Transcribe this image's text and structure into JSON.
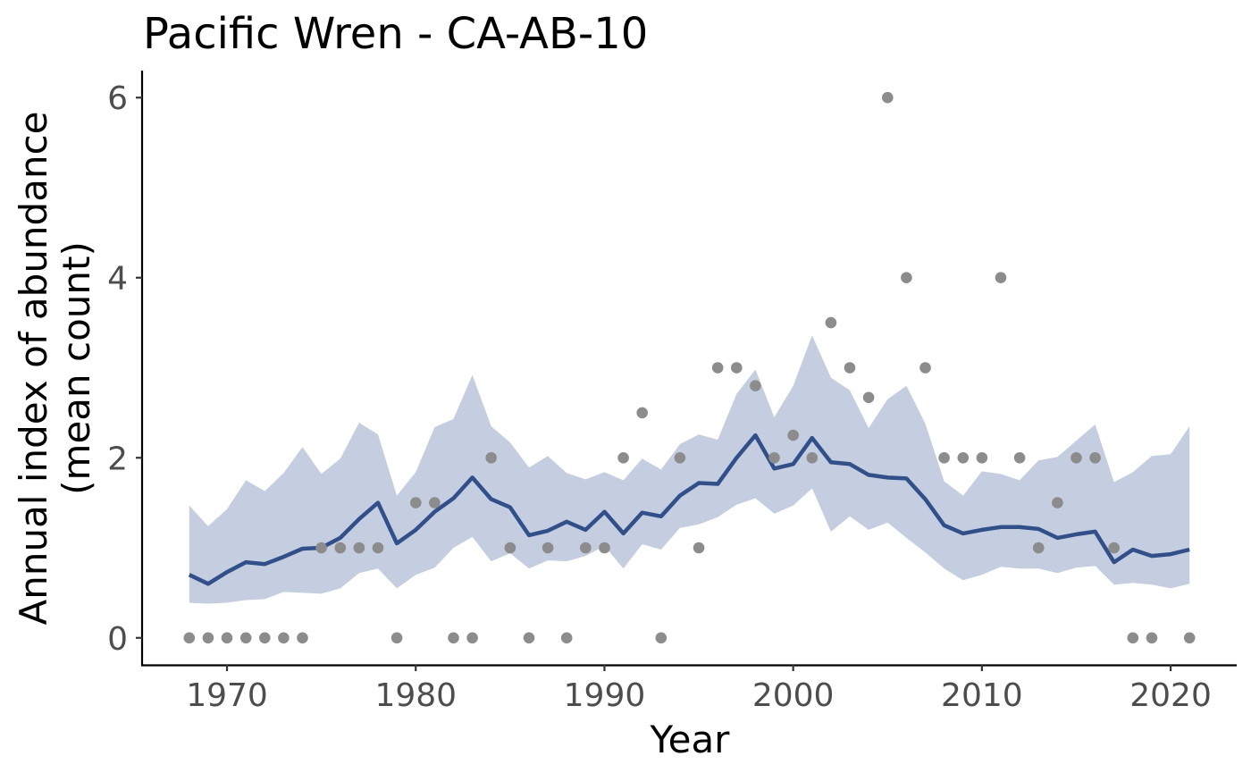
{
  "chart_data": {
    "type": "line",
    "title": "Pacific Wren - CA-AB-10",
    "xlabel": "Year",
    "ylabel_lines": [
      "Annual index of abundance",
      "(mean count)"
    ],
    "xlim": [
      1965.5,
      2023.5
    ],
    "ylim": [
      -0.3,
      6.3
    ],
    "x_ticks": [
      1970,
      1980,
      1990,
      2000,
      2010,
      2020
    ],
    "x_tick_labels": [
      "1970",
      "1980",
      "1990",
      "2000",
      "2010",
      "2020"
    ],
    "y_ticks": [
      0,
      2,
      4,
      6
    ],
    "y_tick_labels": [
      "0",
      "2",
      "4",
      "6"
    ],
    "grid": false,
    "colors": {
      "line": "#31508a",
      "ribbon": "#c5cde0",
      "points": "#8c8c8c"
    },
    "series": [
      {
        "type": "line",
        "x": [
          1968,
          1969,
          1970,
          1971,
          1972,
          1973,
          1974,
          1975,
          1976,
          1977,
          1978,
          1979,
          1980,
          1981,
          1982,
          1983,
          1984,
          1985,
          1986,
          1987,
          1988,
          1989,
          1990,
          1991,
          1992,
          1993,
          1994,
          1995,
          1996,
          1997,
          1998,
          1999,
          2000,
          2001,
          2002,
          2003,
          2004,
          2005,
          2006,
          2007,
          2008,
          2009,
          2010,
          2011,
          2012,
          2013,
          2014,
          2015,
          2016,
          2017,
          2018,
          2019,
          2020,
          2021
        ],
        "y": [
          0.7,
          0.6,
          0.73,
          0.84,
          0.82,
          0.9,
          0.99,
          1.0,
          1.11,
          1.32,
          1.5,
          1.05,
          1.2,
          1.4,
          1.55,
          1.78,
          1.54,
          1.45,
          1.14,
          1.19,
          1.29,
          1.2,
          1.4,
          1.16,
          1.39,
          1.35,
          1.58,
          1.72,
          1.71,
          2.0,
          2.25,
          1.88,
          1.93,
          2.22,
          1.95,
          1.93,
          1.81,
          1.78,
          1.77,
          1.54,
          1.25,
          1.16,
          1.2,
          1.23,
          1.23,
          1.21,
          1.11,
          1.15,
          1.18,
          0.84,
          0.98,
          0.91,
          0.93,
          0.98
        ]
      },
      {
        "type": "area_band",
        "x": [
          1968,
          1969,
          1970,
          1971,
          1972,
          1973,
          1974,
          1975,
          1976,
          1977,
          1978,
          1979,
          1980,
          1981,
          1982,
          1983,
          1984,
          1985,
          1986,
          1987,
          1988,
          1989,
          1990,
          1991,
          1992,
          1993,
          1994,
          1995,
          1996,
          1997,
          1998,
          1999,
          2000,
          2001,
          2002,
          2003,
          2004,
          2005,
          2006,
          2007,
          2008,
          2009,
          2010,
          2011,
          2012,
          2013,
          2014,
          2015,
          2016,
          2017,
          2018,
          2019,
          2020,
          2021
        ],
        "lower": [
          0.39,
          0.38,
          0.39,
          0.42,
          0.43,
          0.51,
          0.5,
          0.49,
          0.55,
          0.72,
          0.77,
          0.55,
          0.7,
          0.78,
          1.0,
          1.12,
          0.85,
          0.94,
          0.77,
          0.86,
          0.85,
          0.91,
          1.02,
          0.77,
          1.04,
          0.98,
          1.22,
          1.26,
          1.34,
          1.48,
          1.55,
          1.38,
          1.47,
          1.66,
          1.18,
          1.35,
          1.2,
          1.28,
          1.11,
          0.95,
          0.77,
          0.64,
          0.7,
          0.79,
          0.77,
          0.77,
          0.72,
          0.78,
          0.8,
          0.59,
          0.61,
          0.59,
          0.55,
          0.6
        ],
        "upper": [
          1.47,
          1.24,
          1.43,
          1.75,
          1.63,
          1.83,
          2.12,
          1.82,
          1.99,
          2.39,
          2.26,
          1.58,
          1.84,
          2.34,
          2.43,
          2.92,
          2.35,
          2.17,
          1.89,
          2.02,
          1.83,
          1.76,
          1.84,
          1.75,
          1.99,
          1.87,
          2.15,
          2.26,
          2.2,
          2.71,
          2.98,
          2.45,
          2.8,
          3.36,
          2.89,
          2.75,
          2.33,
          2.65,
          2.8,
          2.38,
          1.74,
          1.58,
          1.85,
          1.82,
          1.75,
          1.97,
          2.01,
          2.19,
          2.37,
          1.73,
          1.84,
          2.02,
          2.04,
          2.35
        ]
      },
      {
        "type": "scatter",
        "x": [
          1968,
          1969,
          1970,
          1971,
          1972,
          1973,
          1974,
          1975,
          1976,
          1977,
          1978,
          1979,
          1980,
          1981,
          1982,
          1983,
          1984,
          1985,
          1986,
          1987,
          1988,
          1989,
          1990,
          1991,
          1992,
          1993,
          1994,
          1995,
          1996,
          1997,
          1998,
          1999,
          2000,
          2001,
          2002,
          2003,
          2004,
          2005,
          2006,
          2007,
          2008,
          2009,
          2010,
          2011,
          2012,
          2013,
          2014,
          2015,
          2016,
          2017,
          2018,
          2019,
          2021
        ],
        "y": [
          0,
          0,
          0,
          0,
          0,
          0,
          0,
          1,
          1,
          1,
          1,
          0,
          1.5,
          1.5,
          0,
          0,
          2,
          1,
          0,
          1,
          0,
          1,
          1,
          2,
          2.5,
          0,
          2,
          1,
          3,
          3,
          2.8,
          2,
          2.25,
          2,
          3.5,
          3,
          2.67,
          6,
          4,
          3,
          2,
          2,
          2,
          4,
          2,
          1,
          1.5,
          2,
          2,
          1,
          0,
          0,
          0
        ]
      }
    ]
  }
}
